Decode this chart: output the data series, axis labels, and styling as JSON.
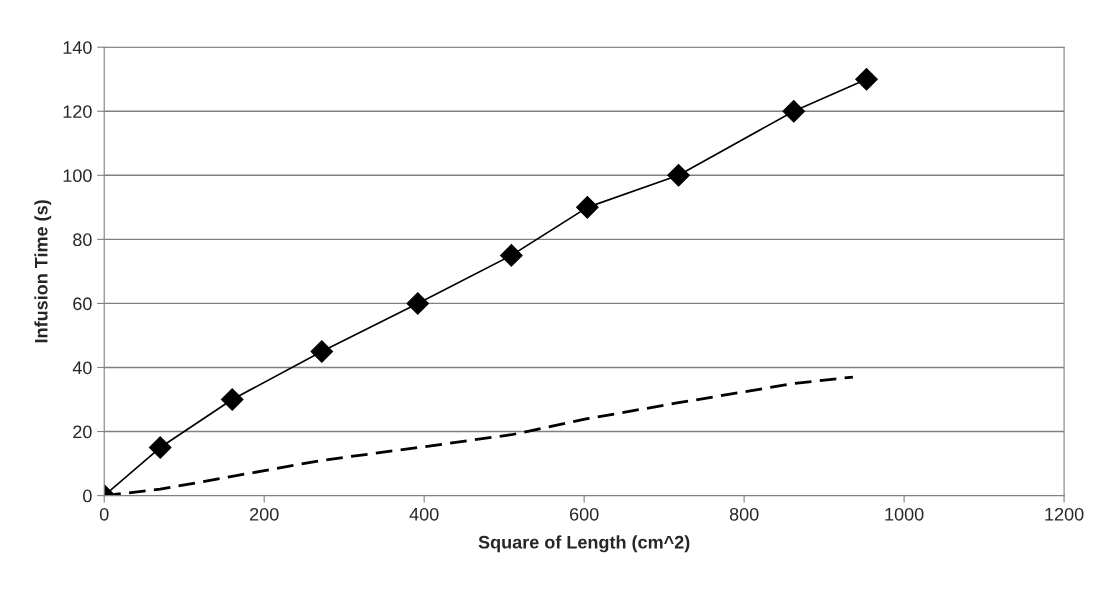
{
  "chart_data": {
    "type": "line",
    "xlabel": "Square of Length (cm^2)",
    "ylabel": "Infusion Time (s)",
    "series": [
      {
        "color": "#000000",
        "marker": "diamond",
        "line_style": "solid",
        "x": [
          0,
          70,
          160,
          272,
          392,
          509,
          604,
          718,
          862,
          953
        ],
        "values": [
          0,
          15,
          30,
          45,
          60,
          75,
          90,
          100,
          120,
          130
        ]
      },
      {
        "color": "#000000",
        "marker": "none",
        "line_style": "dashed",
        "x": [
          0,
          70,
          160,
          272,
          392,
          509,
          604,
          718,
          862,
          936
        ],
        "values": [
          0,
          2,
          6,
          11,
          15,
          19,
          24,
          29,
          35,
          37
        ]
      }
    ],
    "xlim": [
      0,
      1200
    ],
    "xticks": [
      0,
      200,
      400,
      600,
      800,
      1000,
      1200
    ],
    "ylim": [
      0,
      140
    ],
    "yticks": [
      0,
      20,
      40,
      60,
      80,
      100,
      120,
      140
    ],
    "grid": "y"
  }
}
